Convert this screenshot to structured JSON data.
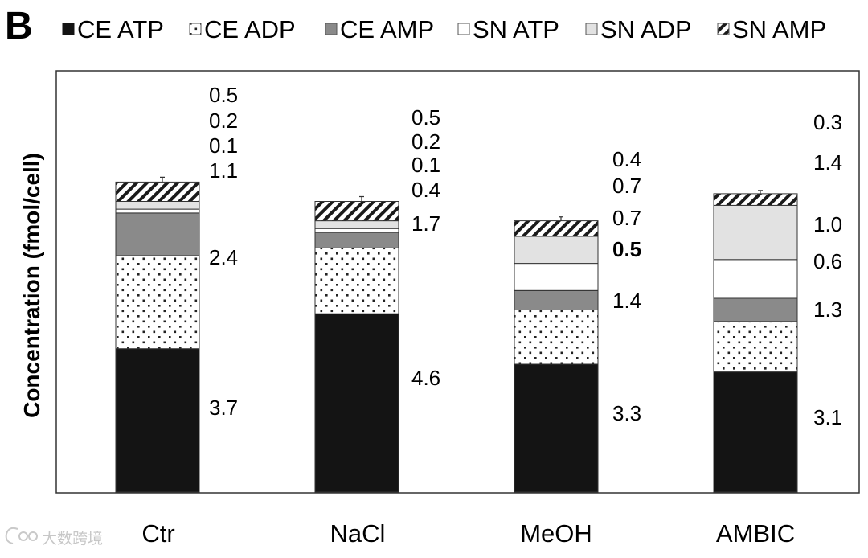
{
  "panel_label": "B",
  "watermark": "大数跨境",
  "colors": {
    "ce_atp": "#141414",
    "ce_amp": "#8a8a8a",
    "sn_adp": "#e2e2e2",
    "frame": "#333333"
  },
  "chart_data": {
    "type": "bar",
    "stacked": true,
    "title": "",
    "xlabel": "",
    "ylabel": "Concentration (fmol/cell)",
    "ylim": [
      0,
      10.5
    ],
    "grid": false,
    "legend_position": "top",
    "categories": [
      "Ctr",
      "NaCl",
      "MeOH",
      "AMBIC"
    ],
    "series": [
      {
        "name": "CE ATP",
        "pattern": "solid-black",
        "values": [
          3.7,
          4.6,
          3.3,
          3.1
        ],
        "labels": [
          "3.7",
          "4.6",
          "3.3",
          "3.1"
        ]
      },
      {
        "name": "CE ADP",
        "pattern": "dots",
        "values": [
          2.4,
          1.7,
          1.4,
          1.3
        ],
        "labels": [
          "2.4",
          "1.7",
          "1.4",
          "1.3"
        ]
      },
      {
        "name": "CE AMP",
        "pattern": "solid-gray",
        "values": [
          1.1,
          0.4,
          0.5,
          0.6
        ],
        "labels": [
          "1.1",
          "0.4",
          "0.5",
          "0.6"
        ]
      },
      {
        "name": "SN ATP",
        "pattern": "white",
        "values": [
          0.1,
          0.1,
          0.7,
          1.0
        ],
        "labels": [
          "0.1",
          "0.1",
          "0.7",
          "1.0"
        ]
      },
      {
        "name": "SN ADP",
        "pattern": "light-gray",
        "values": [
          0.2,
          0.2,
          0.7,
          1.4
        ],
        "labels": [
          "0.2",
          "0.2",
          "0.7",
          "1.4"
        ]
      },
      {
        "name": "SN AMP",
        "pattern": "diagonal-hatch",
        "values": [
          0.5,
          0.5,
          0.4,
          0.3
        ],
        "labels": [
          "0.5",
          "0.5",
          "0.4",
          "0.3"
        ]
      }
    ]
  }
}
